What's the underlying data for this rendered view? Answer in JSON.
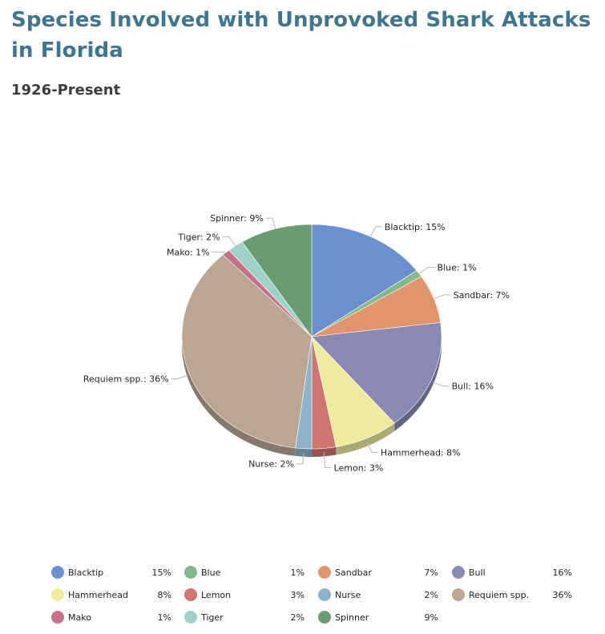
{
  "page": {
    "title": "Species Involved with Unprovoked Shark Attacks in Florida",
    "subtitle": "1926-Present"
  },
  "chart_data": {
    "type": "pie",
    "title": "Species Involved with Unprovoked Shark Attacks in Florida",
    "subtitle": "1926-Present",
    "unit": "%",
    "legend_position": "bottom",
    "slices": [
      {
        "label": "Blacktip",
        "value": 15,
        "color": "#6b8fcf"
      },
      {
        "label": "Blue",
        "value": 1,
        "color": "#82b98a"
      },
      {
        "label": "Sandbar",
        "value": 7,
        "color": "#e0956c"
      },
      {
        "label": "Bull",
        "value": 16,
        "color": "#8b89b4"
      },
      {
        "label": "Hammerhead",
        "value": 8,
        "color": "#eeeb9e"
      },
      {
        "label": "Lemon",
        "value": 3,
        "color": "#cf766f"
      },
      {
        "label": "Nurse",
        "value": 2,
        "color": "#8db3cc"
      },
      {
        "label": "Requiem spp.",
        "value": 36,
        "color": "#baa693"
      },
      {
        "label": "Mako",
        "value": 1,
        "color": "#c87087"
      },
      {
        "label": "Tiger",
        "value": 2,
        "color": "#9ed1c7"
      },
      {
        "label": "Spinner",
        "value": 9,
        "color": "#6a9b72"
      }
    ]
  }
}
